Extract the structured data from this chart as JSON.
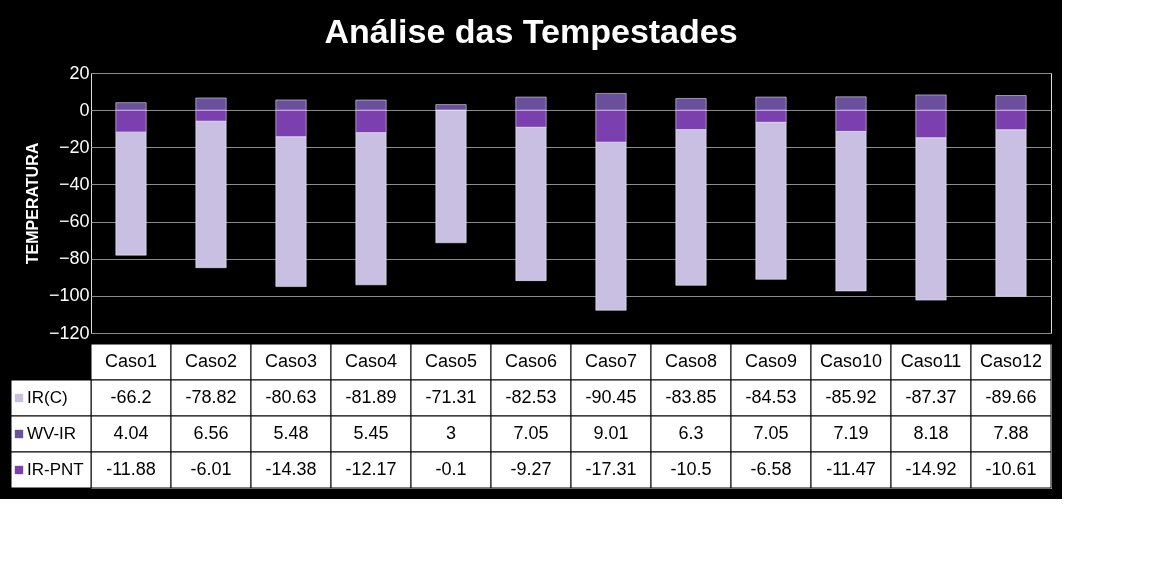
{
  "chart_data": {
    "type": "bar",
    "title": "Análise das Tempestades",
    "ylabel": "TEMPERATURA",
    "stacked": true,
    "categories": [
      "Caso1",
      "Caso2",
      "Caso3",
      "Caso4",
      "Caso5",
      "Caso6",
      "Caso7",
      "Caso8",
      "Caso9",
      "Caso10",
      "Caso11",
      "Caso12"
    ],
    "series": [
      {
        "name": "IR-PNT",
        "color": "#7b3fb0",
        "values": [
          -11.88,
          -6.01,
          -14.38,
          -12.17,
          -0.1,
          -9.27,
          -17.31,
          -10.5,
          -6.58,
          -11.47,
          -14.92,
          -10.61
        ]
      },
      {
        "name": "WV-IR",
        "color": "#6a4f9c",
        "values": [
          4.04,
          6.56,
          5.48,
          5.45,
          3,
          7.05,
          9.01,
          6.3,
          7.05,
          7.19,
          8.18,
          7.88
        ]
      },
      {
        "name": "IR(C)",
        "color": "#c9bfe2",
        "values": [
          -66.2,
          -78.82,
          -80.63,
          -81.89,
          -71.31,
          -82.53,
          -90.45,
          -83.85,
          -84.53,
          -85.92,
          -87.37,
          -89.66
        ]
      }
    ],
    "ylim": [
      -120,
      20
    ],
    "yticks": [
      -120,
      -100,
      -80,
      -60,
      -40,
      -20,
      0,
      20
    ],
    "grid": "y",
    "legend": "bottom",
    "data_labels": true
  }
}
